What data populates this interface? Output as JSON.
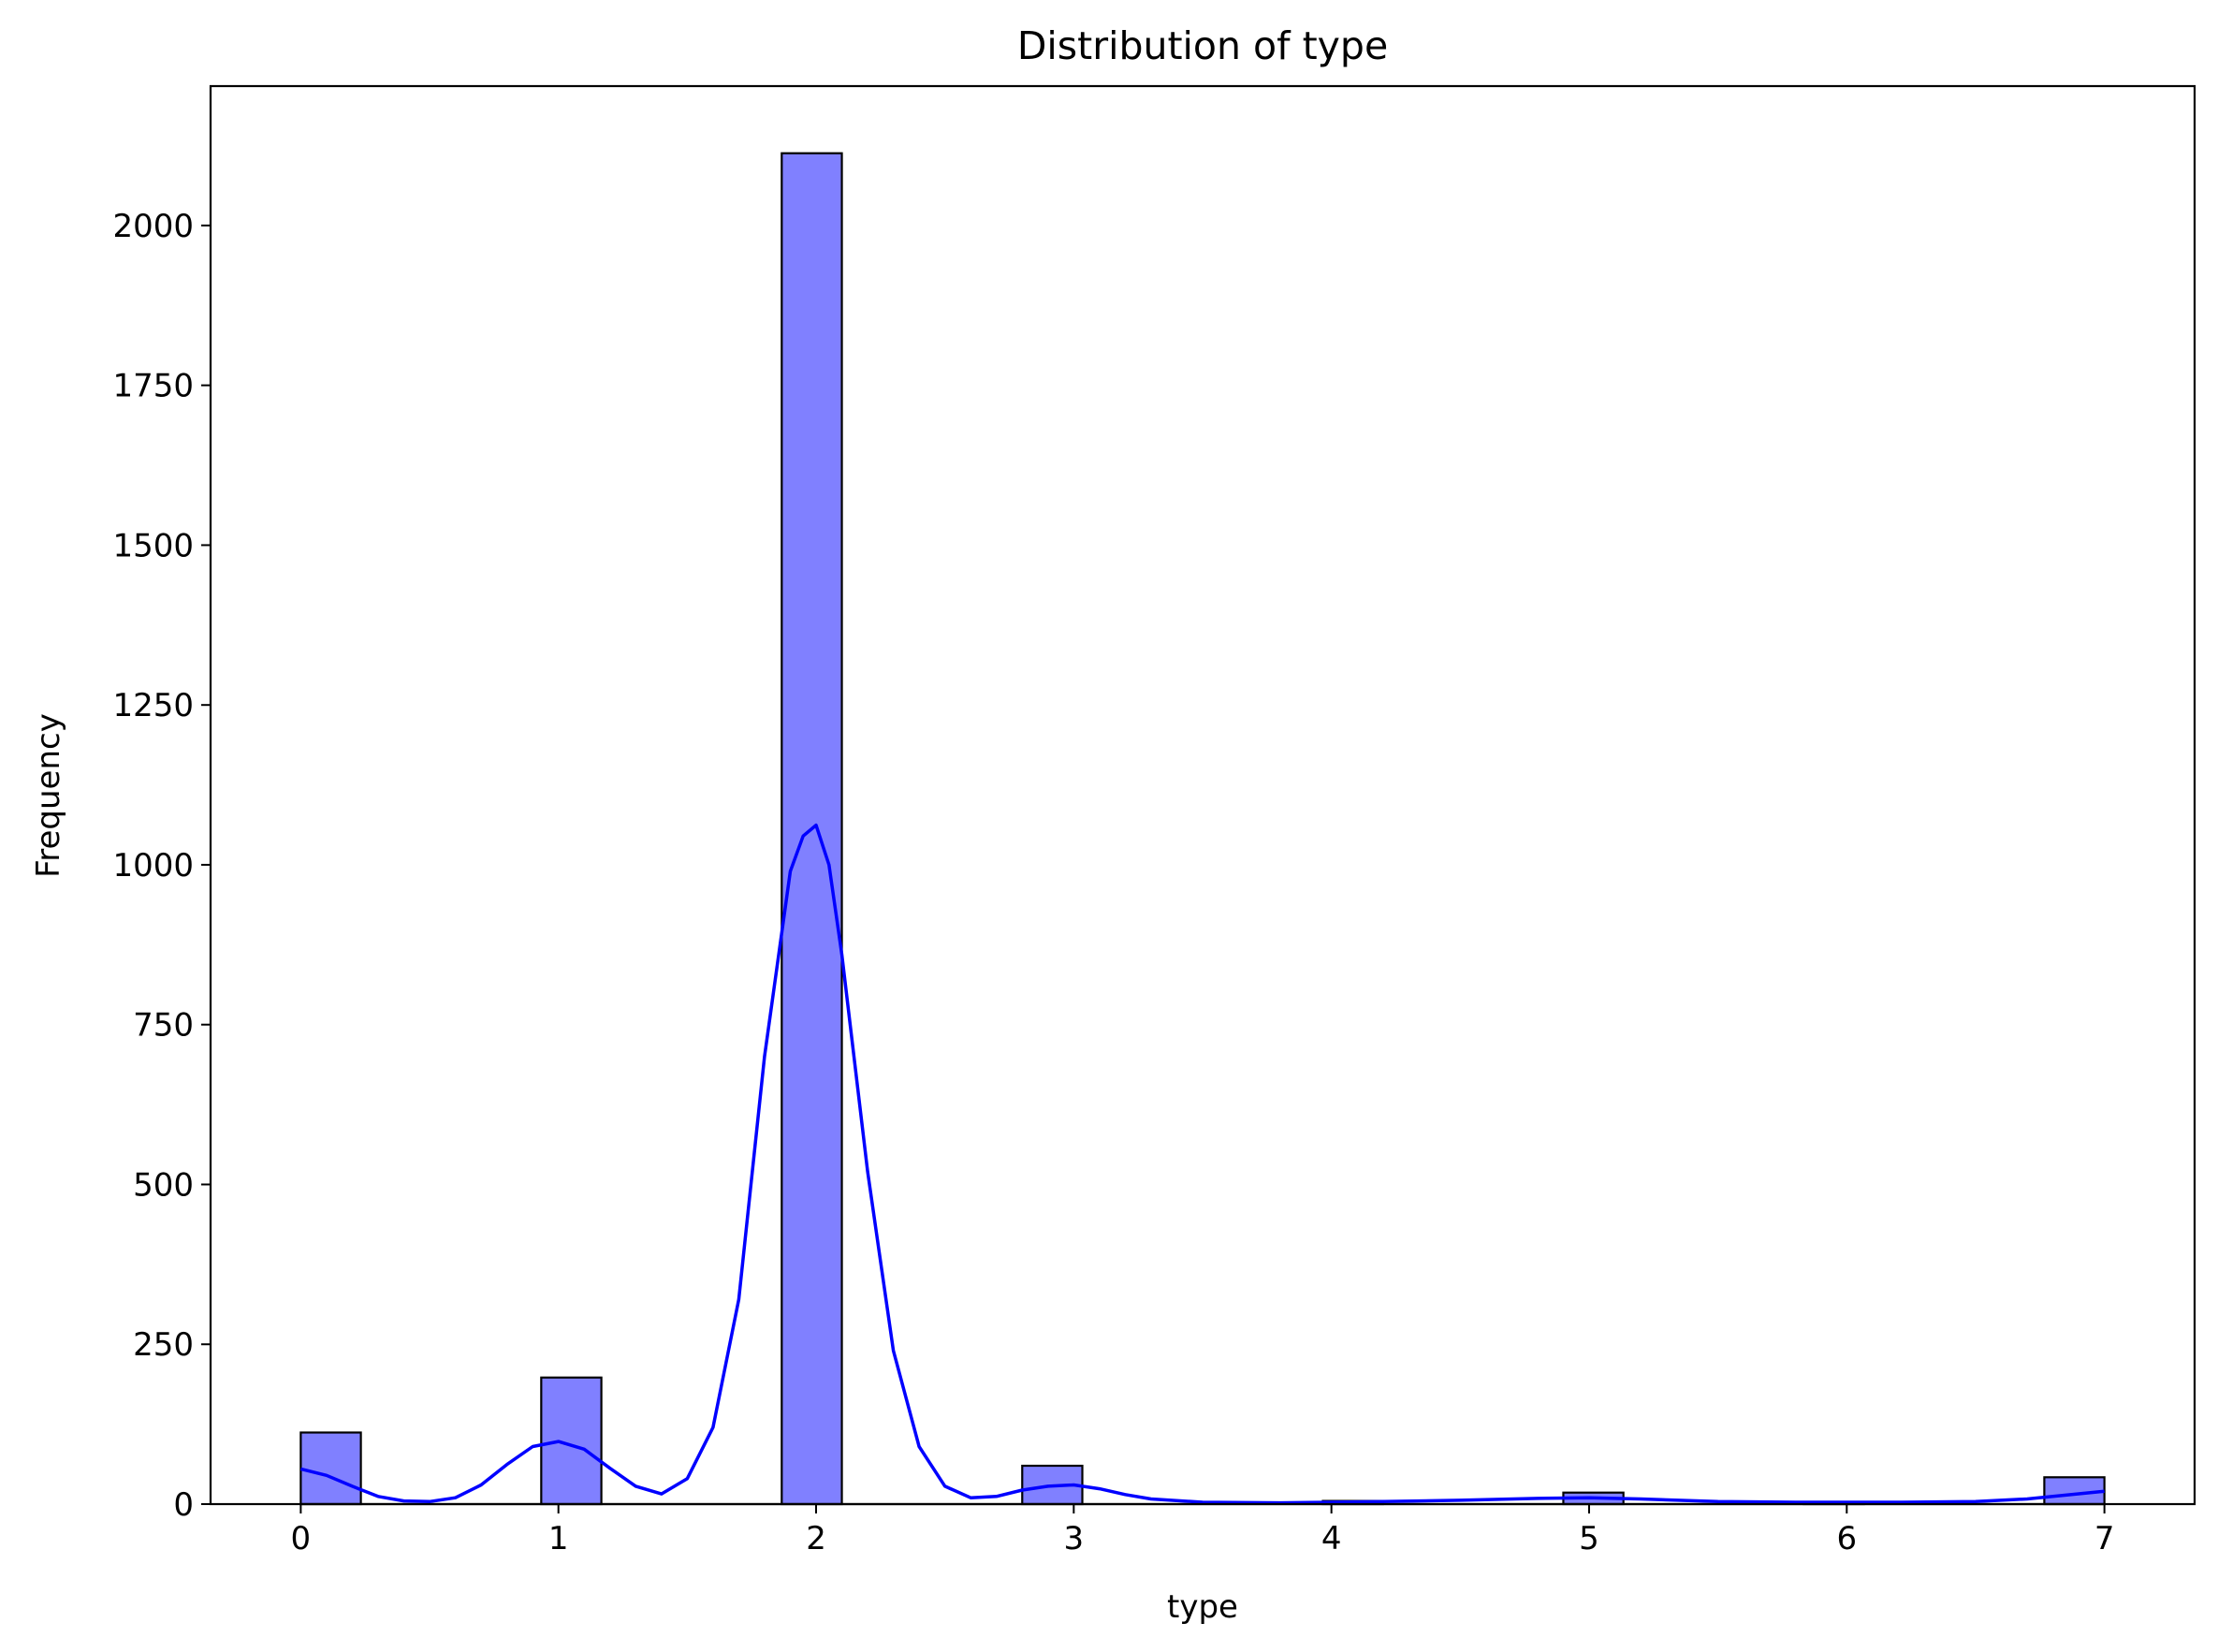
{
  "chart_data": {
    "type": "bar",
    "title": "Distribution of type",
    "xlabel": "type",
    "ylabel": "Frequency",
    "xlim": [
      -0.35,
      7.35
    ],
    "ylim": [
      0,
      2218
    ],
    "x_ticks": [
      0,
      1,
      2,
      3,
      4,
      5,
      6,
      7
    ],
    "x_tick_labels": [
      "0",
      "1",
      "2",
      "3",
      "4",
      "5",
      "6",
      "7"
    ],
    "y_ticks": [
      0,
      250,
      500,
      750,
      1000,
      1250,
      1500,
      1750,
      2000
    ],
    "y_tick_labels": [
      "0",
      "250",
      "500",
      "750",
      "1000",
      "1250",
      "1500",
      "1750",
      "2000"
    ],
    "bins": 30,
    "bin_width": 0.2333,
    "bars": [
      {
        "x_start": 0.0,
        "x_end": 0.2333,
        "count": 112
      },
      {
        "x_start": 0.9333,
        "x_end": 1.1667,
        "count": 198
      },
      {
        "x_start": 1.8667,
        "x_end": 2.1,
        "count": 2113
      },
      {
        "x_start": 2.8,
        "x_end": 3.0333,
        "count": 60
      },
      {
        "x_start": 3.9667,
        "x_end": 4.2,
        "count": 5
      },
      {
        "x_start": 4.9,
        "x_end": 5.1333,
        "count": 18
      },
      {
        "x_start": 5.8333,
        "x_end": 6.0667,
        "count": 3
      },
      {
        "x_start": 6.7667,
        "x_end": 7.0,
        "count": 42
      }
    ],
    "kde": {
      "x": [
        0.0,
        0.1,
        0.2,
        0.3,
        0.4,
        0.5,
        0.6,
        0.7,
        0.8,
        0.9,
        1.0,
        1.1,
        1.2,
        1.3,
        1.4,
        1.5,
        1.6,
        1.7,
        1.8,
        1.9,
        1.95,
        2.0,
        2.05,
        2.1,
        2.2,
        2.3,
        2.4,
        2.5,
        2.6,
        2.7,
        2.8,
        2.9,
        3.0,
        3.1,
        3.2,
        3.3,
        3.5,
        3.8,
        4.0,
        4.2,
        4.5,
        4.8,
        5.0,
        5.2,
        5.5,
        5.8,
        6.0,
        6.2,
        6.5,
        6.7,
        6.85,
        7.0
      ],
      "y": [
        55,
        45,
        28,
        12,
        5,
        4,
        10,
        30,
        62,
        90,
        98,
        86,
        56,
        28,
        16,
        40,
        120,
        320,
        700,
        990,
        1045,
        1062,
        1000,
        860,
        520,
        240,
        90,
        28,
        10,
        12,
        22,
        28,
        30,
        24,
        15,
        8,
        3,
        2,
        3,
        4,
        6,
        9,
        10,
        8,
        4,
        3,
        3,
        3,
        4,
        8,
        14,
        20
      ]
    },
    "colors": {
      "bar_fill": "#8080ff",
      "bar_edge": "#000000",
      "kde_line": "#0000ff"
    },
    "grid": false,
    "legend": "none"
  }
}
